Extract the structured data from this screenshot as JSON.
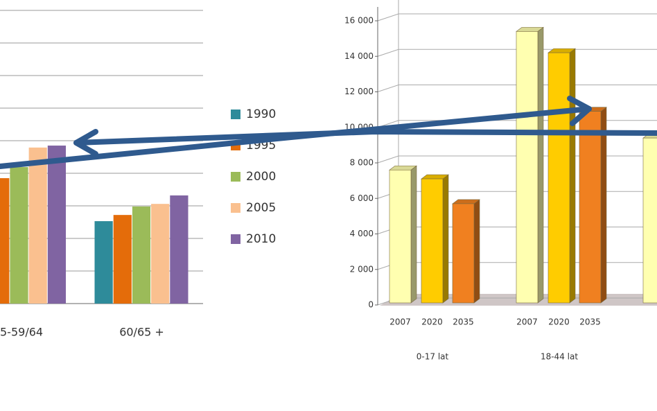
{
  "chart_data": [
    {
      "type": "bar",
      "categories": [
        "5-59/64",
        "60/65 +"
      ],
      "series": [
        {
          "name": "1990",
          "color": "#2e8b9a",
          "values": [
            null,
            2.53
          ]
        },
        {
          "name": "1995",
          "color": "#e46c0a",
          "values": [
            3.85,
            2.72
          ]
        },
        {
          "name": "2000",
          "color": "#9bbb59",
          "values": [
            4.19,
            2.98
          ]
        },
        {
          "name": "2005",
          "color": "#fac08f",
          "values": [
            4.79,
            3.06
          ]
        },
        {
          "name": "2010",
          "color": "#8064a2",
          "values": [
            4.85,
            3.32
          ]
        }
      ],
      "ylim": [
        0,
        9
      ],
      "yticks": [
        0,
        1,
        2,
        3,
        4,
        5,
        6,
        7,
        8,
        9
      ],
      "tick_labels": false,
      "grid": true,
      "legend": "right"
    },
    {
      "type": "bar",
      "three_d": true,
      "categories": [
        "0-17 lat",
        "18-44 lat",
        null
      ],
      "series": [
        {
          "name": "2007",
          "color": "#ffffb0",
          "values": [
            7600,
            15400,
            9400
          ]
        },
        {
          "name": "2020",
          "color": "#ffcc00",
          "values": [
            7100,
            14200,
            null
          ]
        },
        {
          "name": "2035",
          "color": "#f08020",
          "values": [
            5700,
            10900,
            null
          ]
        }
      ],
      "ylim": [
        0,
        16000
      ],
      "yticks": [
        0,
        {
          "value": 2000,
          "label": "2 000"
        },
        {
          "value": 4000,
          "label": "4 000"
        },
        {
          "value": 6000,
          "label": "6 000"
        },
        {
          "value": 8000,
          "label": "8 000"
        },
        {
          "value": 10000,
          "label": "10 000"
        },
        {
          "value": 12000,
          "label": "12 000"
        },
        {
          "value": 14000,
          "label": "14 000"
        },
        {
          "value": 16000,
          "label": "16 000"
        }
      ],
      "grid": true
    }
  ]
}
